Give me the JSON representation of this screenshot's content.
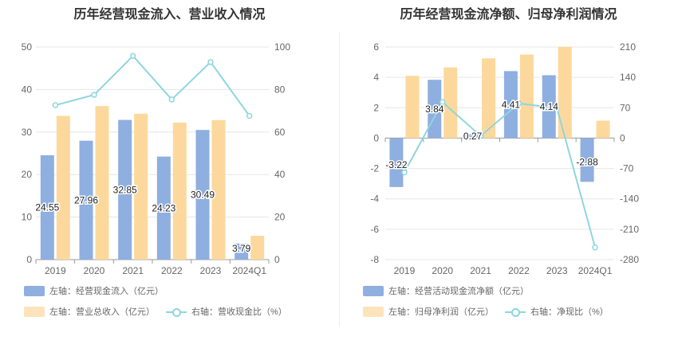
{
  "chart_data": [
    {
      "type": "bar",
      "title": "历年经营现金流入、营业收入情况",
      "categories": [
        "2019",
        "2020",
        "2021",
        "2022",
        "2023",
        "2024Q1"
      ],
      "y_left": {
        "ticks": [
          0,
          10,
          20,
          30,
          40,
          50
        ],
        "range": [
          0,
          50
        ]
      },
      "y_right": {
        "ticks": [
          0,
          20,
          40,
          60,
          80,
          100
        ],
        "range": [
          0,
          100
        ]
      },
      "series": [
        {
          "name": "左轴：经营现金流入（亿元）",
          "axis": "left",
          "kind": "bar",
          "color": "#8eafdf",
          "values": [
            24.55,
            27.96,
            32.85,
            24.23,
            30.49,
            3.79
          ],
          "labels": [
            "24.55",
            "27.96",
            "32.85",
            "24.23",
            "30.49",
            "3.79"
          ]
        },
        {
          "name": "左轴：营业总收入（亿元）",
          "axis": "left",
          "kind": "bar",
          "color": "#fdd89d",
          "values": [
            33.8,
            36.1,
            34.3,
            32.2,
            32.8,
            5.6
          ]
        },
        {
          "name": "右轴：营收现金比（%）",
          "axis": "right",
          "kind": "line",
          "color": "#8ed6de",
          "values": [
            72.6,
            77.5,
            95.8,
            75.3,
            92.9,
            67.6
          ]
        }
      ],
      "grid": true,
      "legend": "bottom"
    },
    {
      "type": "bar",
      "title": "历年经营现金流净额、归母净利润情况",
      "categories": [
        "2019",
        "2020",
        "2021",
        "2022",
        "2023",
        "2024Q1"
      ],
      "y_left": {
        "ticks": [
          -8,
          -6,
          -4,
          -2,
          0,
          2,
          4,
          6
        ],
        "range": [
          -8,
          6
        ]
      },
      "y_right": {
        "ticks": [
          -280,
          -210,
          -140,
          -70,
          0,
          70,
          140,
          210
        ],
        "range": [
          -280,
          210
        ]
      },
      "series": [
        {
          "name": "左轴：经营活动现金流净额（亿元）",
          "axis": "left",
          "kind": "bar",
          "color": "#8eafdf",
          "values": [
            -3.22,
            3.84,
            0.27,
            4.41,
            4.14,
            -2.88
          ],
          "labels": [
            "-3.22",
            "3.84",
            "0.27",
            "4.41",
            "4.14",
            "-2.88"
          ]
        },
        {
          "name": "左轴：归母净利润（亿元）",
          "axis": "left",
          "kind": "bar",
          "color": "#fdd89d",
          "values": [
            4.1,
            4.65,
            5.25,
            5.5,
            6.0,
            1.15
          ]
        },
        {
          "name": "右轴：净现比（%）",
          "axis": "right",
          "kind": "line",
          "color": "#8ed6de",
          "values": [
            -79,
            83,
            5,
            80,
            69,
            -252
          ]
        }
      ],
      "grid": true,
      "legend": "bottom"
    }
  ]
}
